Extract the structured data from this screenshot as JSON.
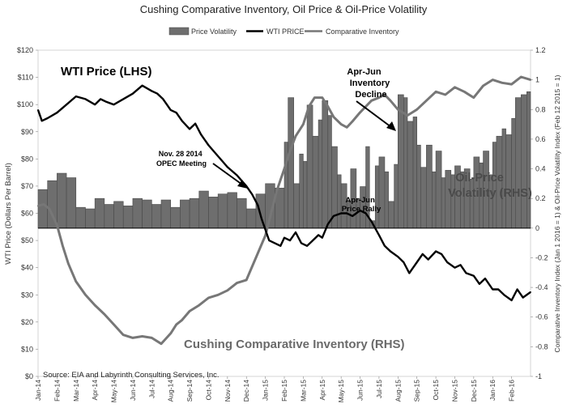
{
  "chart_data": {
    "type": "bar+line",
    "title": "Cushing Comparative Inventory, Oil Price & Oil-Price Volatility",
    "legend": {
      "placement": "top-center",
      "entries": [
        "Price Volatility",
        "WTI PRICE",
        "Comparative Inventory"
      ]
    },
    "ylabel_left": "WTI Price (Dollars Per Barrel)",
    "ylabel_right": "Comparative Inventory Index (Jan 1 2016 = 1) & Oil-Price Volatility Index (Feb 12 2015 = 1)",
    "ylim_left": [
      0,
      120
    ],
    "ylim_right": [
      -1,
      1.2
    ],
    "left_ticks": [
      "$0",
      "$10",
      "$20",
      "$30",
      "$40",
      "$50",
      "$60",
      "$70",
      "$80",
      "$90",
      "$100",
      "$110",
      "$120"
    ],
    "right_ticks": [
      "-1",
      "-0.8",
      "-0.6",
      "-0.4",
      "-0.2",
      "0",
      "0.2",
      "0.4",
      "0.6",
      "0.8",
      "1",
      "1.2"
    ],
    "x_tick_labels": [
      "Jan-14",
      "Feb-14",
      "Mar-14",
      "Apr-14",
      "May-14",
      "Jun-14",
      "Jul-14",
      "Aug-14",
      "Sep-14",
      "Oct-14",
      "Nov-14",
      "Dec-14",
      "Jan-15",
      "Feb-15",
      "Mar-15",
      "Apr-15",
      "May-15",
      "Jun-15",
      "Jul-15",
      "Aug-15",
      "Sep-15",
      "Oct-15",
      "Nov-15",
      "Dec-15",
      "Jan-16",
      "Feb-16"
    ],
    "x_range_months": [
      0,
      26
    ],
    "series": [
      {
        "name": "Price Volatility",
        "type": "bar",
        "axis": "right",
        "x": [
          0,
          0.5,
          1,
          1.5,
          2,
          2.5,
          3,
          3.5,
          4,
          4.5,
          5,
          5.5,
          6,
          6.5,
          7,
          7.5,
          8,
          8.5,
          9,
          9.5,
          10,
          10.5,
          11,
          11.5,
          12,
          12.5,
          13,
          13.2,
          13.5,
          13.8,
          14,
          14.2,
          14.5,
          14.8,
          15,
          15.3,
          15.5,
          15.8,
          16,
          16.3,
          16.5,
          16.8,
          17,
          17.3,
          17.5,
          17.8,
          18,
          18.3,
          18.5,
          18.8,
          19,
          19.3,
          19.5,
          19.8,
          20,
          20.2,
          20.5,
          20.8,
          21,
          21.3,
          21.5,
          21.8,
          22,
          22.3,
          22.5,
          22.8,
          23,
          23.3,
          23.5,
          23.8,
          24,
          24.2,
          24.5,
          24.7,
          25,
          25.2,
          25.5,
          25.8
        ],
        "values": [
          0.26,
          0.32,
          0.37,
          0.34,
          0.14,
          0.13,
          0.2,
          0.16,
          0.18,
          0.15,
          0.2,
          0.19,
          0.16,
          0.19,
          0.14,
          0.19,
          0.2,
          0.25,
          0.21,
          0.23,
          0.24,
          0.2,
          0.13,
          0.23,
          0.3,
          0.27,
          0.58,
          0.88,
          0.3,
          0.5,
          0.45,
          0.83,
          0.62,
          0.73,
          0.86,
          0.76,
          0.55,
          0.36,
          0.3,
          0.18,
          0.4,
          0.2,
          0.28,
          0.55,
          0.05,
          0.42,
          0.48,
          0.38,
          0.18,
          0.43,
          0.9,
          0.88,
          0.72,
          0.75,
          0.56,
          0.41,
          0.56,
          0.38,
          0.52,
          0.34,
          0.39,
          0.36,
          0.42,
          0.38,
          0.4,
          0.33,
          0.48,
          0.44,
          0.52,
          0.36,
          0.58,
          0.62,
          0.67,
          0.63,
          0.74,
          0.88,
          0.9,
          0.92
        ]
      },
      {
        "name": "WTI PRICE",
        "type": "line",
        "axis": "left",
        "x": [
          0,
          0.2,
          0.5,
          1,
          1.5,
          2,
          2.5,
          3,
          3.3,
          3.6,
          4,
          4.5,
          5,
          5.5,
          6,
          6.3,
          6.6,
          7,
          7.3,
          7.6,
          8,
          8.3,
          8.6,
          9,
          9.5,
          10,
          10.5,
          11,
          11.3,
          11.6,
          11.8,
          12,
          12.2,
          12.5,
          12.8,
          13,
          13.3,
          13.6,
          13.9,
          14.2,
          14.5,
          14.8,
          15,
          15.3,
          15.6,
          16,
          16.3,
          16.6,
          17,
          17.3,
          17.6,
          18,
          18.3,
          18.6,
          19,
          19.3,
          19.6,
          20,
          20.3,
          20.6,
          21,
          21.3,
          21.6,
          22,
          22.3,
          22.6,
          23,
          23.3,
          23.6,
          24,
          24.3,
          24.6,
          25,
          25.3,
          25.6,
          26
        ],
        "values": [
          98,
          94,
          95,
          97,
          100,
          103,
          102,
          100,
          102,
          101,
          100,
          102,
          104,
          107,
          105,
          104,
          102,
          98,
          97,
          94,
          91,
          93,
          89,
          85,
          81,
          77,
          74,
          70,
          67,
          63,
          58,
          54,
          50,
          49,
          48,
          51,
          50,
          53,
          49,
          48,
          50,
          52,
          51,
          56,
          59,
          60,
          60,
          59,
          61,
          60,
          57,
          52,
          48,
          46,
          44,
          42,
          38,
          42,
          45,
          43,
          46,
          45,
          42,
          40,
          41,
          38,
          37,
          34,
          36,
          32,
          32,
          30,
          28,
          32,
          29,
          31
        ]
      },
      {
        "name": "Comparative Inventory",
        "type": "line",
        "axis": "right",
        "x": [
          0,
          0.3,
          0.6,
          1,
          1.3,
          1.6,
          2,
          2.5,
          3,
          3.5,
          4,
          4.5,
          5,
          5.5,
          6,
          6.5,
          7,
          7.3,
          7.6,
          8,
          8.5,
          9,
          9.5,
          10,
          10.5,
          11,
          11.5,
          12,
          12.3,
          12.6,
          13,
          13.3,
          13.6,
          14,
          14.3,
          14.6,
          15,
          15.3,
          15.6,
          16,
          16.3,
          16.6,
          17,
          17.3,
          17.6,
          18,
          18.3,
          18.6,
          19,
          19.5,
          20,
          20.5,
          21,
          21.5,
          22,
          22.5,
          23,
          23.5,
          24,
          24.5,
          25,
          25.5,
          26
        ],
        "values": [
          0.15,
          0.16,
          0.13,
          0.02,
          -0.12,
          -0.24,
          -0.36,
          -0.45,
          -0.52,
          -0.58,
          -0.65,
          -0.72,
          -0.74,
          -0.73,
          -0.74,
          -0.78,
          -0.71,
          -0.65,
          -0.62,
          -0.56,
          -0.52,
          -0.47,
          -0.45,
          -0.42,
          -0.37,
          -0.35,
          -0.2,
          -0.05,
          0.1,
          0.25,
          0.4,
          0.52,
          0.62,
          0.7,
          0.82,
          0.88,
          0.88,
          0.82,
          0.75,
          0.7,
          0.68,
          0.72,
          0.78,
          0.82,
          0.86,
          0.88,
          0.9,
          0.86,
          0.8,
          0.76,
          0.8,
          0.86,
          0.92,
          0.9,
          0.95,
          0.92,
          0.88,
          0.96,
          1,
          0.98,
          0.97,
          1.02,
          1
        ]
      }
    ],
    "annotations": [
      "WTI Price (LHS)",
      "Apr-Jun Inventory Decline",
      "Nov. 28 2014 OPEC Meeting",
      "Oil-Price Volatility (RHS)",
      "Apr-Jun Price Rally",
      "Cushing Comparative Inventory (RHS)"
    ],
    "source": "Source:  EIA and Labyrinth Consulting  Services, Inc."
  },
  "colors": {
    "bar_fill": "#6e6e6e",
    "bar_stroke": "#4a4a4a",
    "wti_line": "#000000",
    "inventory_line": "#777777",
    "axis_text": "#333333",
    "background": "#ffffff"
  }
}
